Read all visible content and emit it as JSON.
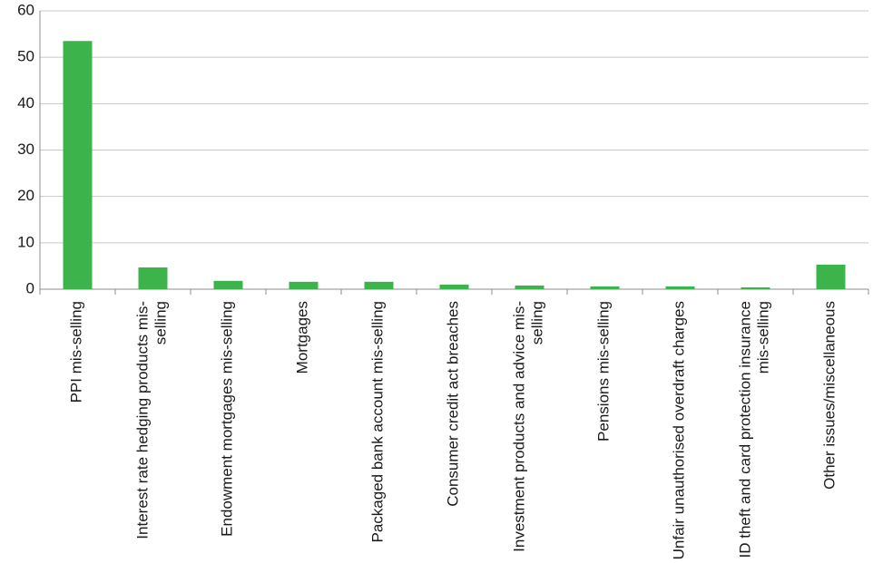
{
  "chart_data": {
    "type": "bar",
    "categories": [
      "PPI mis-selling",
      "Interest rate hedging products mis-selling",
      "Endowment mortgages mis-selling",
      "Mortgages",
      "Packaged bank account mis-selling",
      "Consumer credit act breaches",
      "Investment products and advice mis-selling",
      "Pensions mis-selling",
      "Unfair unauthorised overdraft charges",
      "ID theft and card protection insurance mis-selling",
      "Other issues/miscellaneous"
    ],
    "values": [
      53.5,
      4.7,
      1.8,
      1.6,
      1.6,
      1.0,
      0.8,
      0.6,
      0.6,
      0.4,
      5.3
    ],
    "color": "#3cb44b",
    "ylim": [
      0,
      60
    ],
    "yticks": [
      0,
      10,
      20,
      30,
      40,
      50,
      60
    ],
    "grid": true
  }
}
